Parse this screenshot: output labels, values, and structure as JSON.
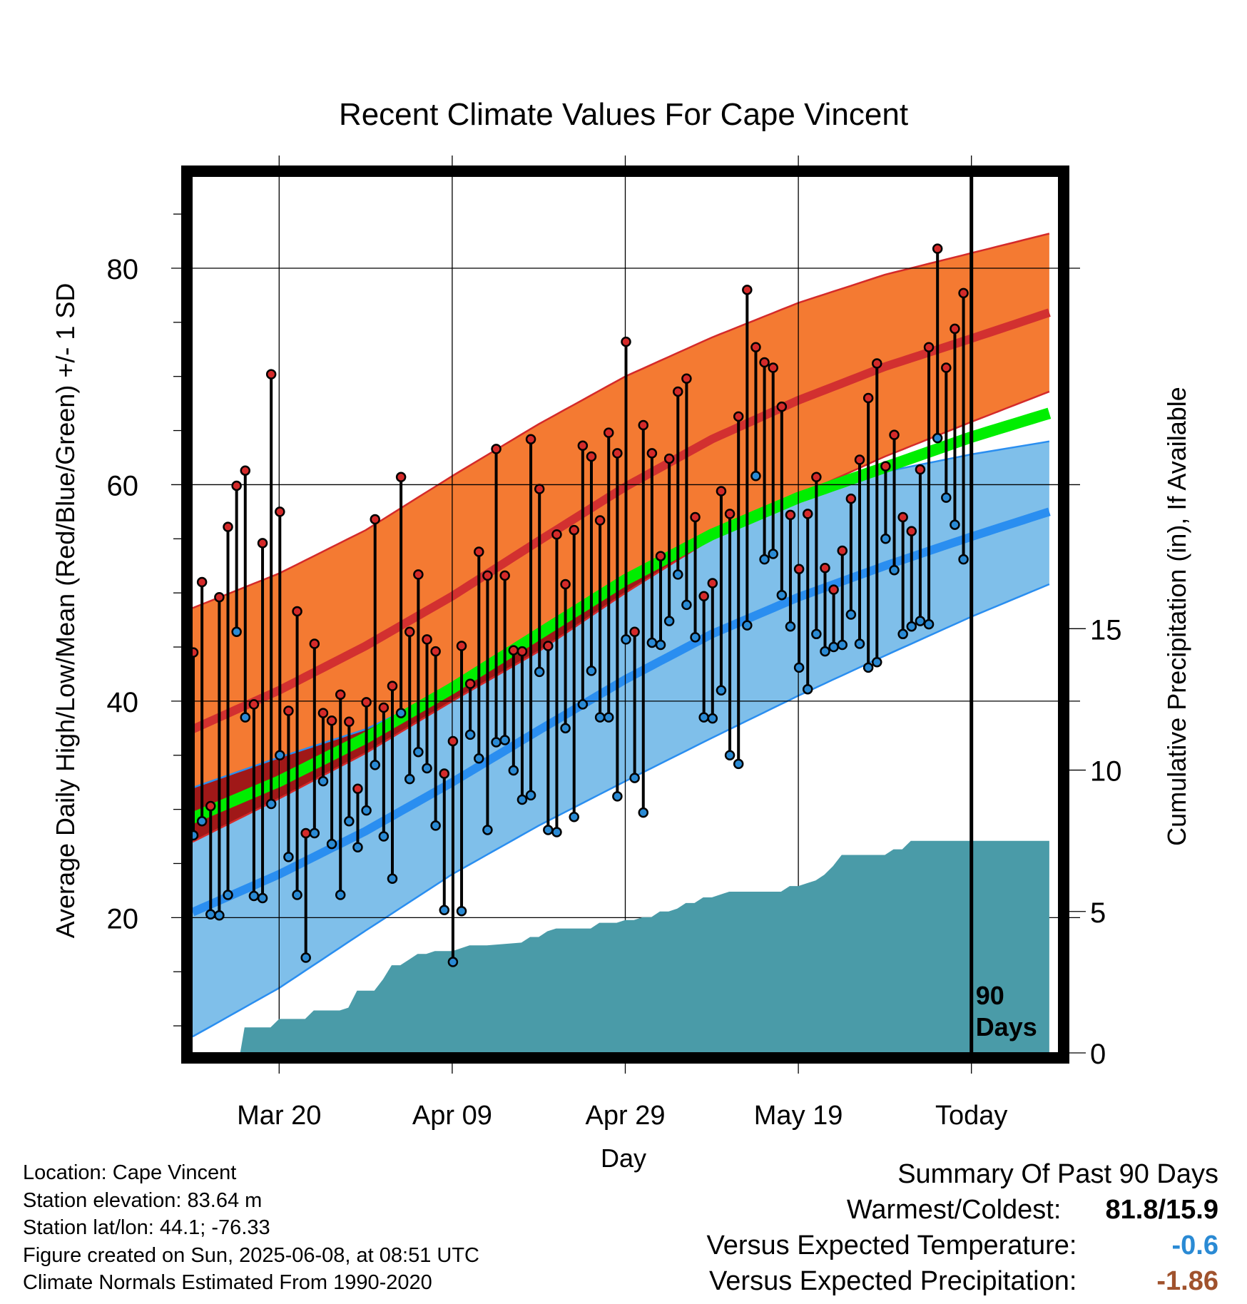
{
  "chart_data": {
    "type": "line",
    "title": "Recent Climate Values For Cape Vincent",
    "xlabel": "Day",
    "ylabel": "Average Daily High/Low/Mean (Red/Blue/Green) +/- 1 SD",
    "y2label": "Cumulative Precipitation (in), If Available",
    "ylim": [
      7.5,
      88.5
    ],
    "y2lim": [
      0,
      31
    ],
    "x_ticks": [
      {
        "day": 10,
        "label": "Mar 20"
      },
      {
        "day": 30,
        "label": "Apr 09"
      },
      {
        "day": 50,
        "label": "Apr 29"
      },
      {
        "day": 70,
        "label": "May 19"
      },
      {
        "day": 90,
        "label": "Today"
      }
    ],
    "y_ticks": [
      20,
      40,
      60,
      80
    ],
    "y2_ticks": [
      0,
      5,
      10,
      15
    ],
    "today_marker": {
      "day": 90,
      "label_line1": "90",
      "label_line2": "Days"
    },
    "normals": {
      "day": [
        0,
        10,
        20,
        30,
        40,
        50,
        60,
        70,
        80,
        90,
        99
      ],
      "high_mean": [
        37.4,
        41.0,
        45.1,
        49.7,
        54.8,
        59.8,
        64.2,
        67.8,
        70.9,
        73.5,
        75.9
      ],
      "high_sd_upper": [
        48.6,
        51.8,
        55.8,
        60.8,
        65.6,
        70.0,
        73.6,
        76.8,
        79.4,
        81.4,
        83.2
      ],
      "high_sd_lower": [
        27.0,
        31.0,
        35.2,
        40.0,
        44.6,
        50.0,
        55.0,
        59.0,
        62.6,
        65.8,
        68.6
      ],
      "mean": [
        29.2,
        32.6,
        36.6,
        41.2,
        46.2,
        51.2,
        55.4,
        58.8,
        61.6,
        64.4,
        66.6
      ],
      "low_mean": [
        20.5,
        24.0,
        28.0,
        32.5,
        37.3,
        42.0,
        46.2,
        49.6,
        52.5,
        55.2,
        57.5
      ],
      "low_sd_upper": [
        32.0,
        34.8,
        37.4,
        41.2,
        46.2,
        51.0,
        55.2,
        58.6,
        61.2,
        62.8,
        64.0
      ],
      "low_sd_lower": [
        9.0,
        13.5,
        18.8,
        24.0,
        28.5,
        32.6,
        36.6,
        40.5,
        44.2,
        47.8,
        50.8
      ]
    },
    "series": [
      {
        "name": "Daily High",
        "color": "#d42a2a",
        "values": [
          44.5,
          51.0,
          30.3,
          49.6,
          56.1,
          59.9,
          61.3,
          39.7,
          54.6,
          70.2,
          57.5,
          39.1,
          48.3,
          27.8,
          45.3,
          38.9,
          38.2,
          40.6,
          38.1,
          31.9,
          39.9,
          56.8,
          39.4,
          41.4,
          60.7,
          46.4,
          51.7,
          45.7,
          44.6,
          33.3,
          36.3,
          45.1,
          41.6,
          53.8,
          51.6,
          63.3,
          51.6,
          44.7,
          44.6,
          64.2,
          59.6,
          45.1,
          55.4,
          50.8,
          55.8,
          63.6,
          62.6,
          56.7,
          64.8,
          62.9,
          73.2,
          46.4,
          65.5,
          62.9,
          53.4,
          62.4,
          68.6,
          69.8,
          57.0,
          49.7,
          50.9,
          59.4,
          57.3,
          66.3,
          78.0,
          72.7,
          71.3,
          70.8,
          67.2,
          57.2,
          52.2,
          57.3,
          60.7,
          52.3,
          50.3,
          53.9,
          58.7,
          62.3,
          68.0,
          71.2,
          61.7,
          64.6,
          57.0,
          55.7,
          61.4,
          72.7,
          81.8,
          70.8,
          74.4,
          77.7
        ]
      },
      {
        "name": "Daily Low",
        "color": "#2a8ad4",
        "values": [
          27.6,
          28.9,
          20.3,
          20.2,
          22.1,
          46.4,
          38.5,
          22.0,
          21.8,
          30.5,
          35.0,
          25.6,
          22.1,
          16.3,
          27.8,
          32.6,
          26.8,
          22.1,
          28.9,
          26.5,
          29.9,
          34.1,
          27.5,
          23.6,
          38.9,
          32.8,
          35.3,
          33.8,
          28.5,
          20.7,
          15.9,
          20.6,
          36.9,
          34.7,
          28.1,
          36.2,
          36.4,
          33.6,
          30.9,
          31.3,
          42.7,
          28.1,
          27.9,
          37.5,
          29.3,
          39.7,
          42.8,
          38.5,
          38.5,
          31.2,
          45.7,
          32.9,
          29.7,
          45.4,
          45.2,
          47.4,
          51.7,
          48.9,
          45.9,
          38.5,
          38.4,
          41.0,
          35.0,
          34.2,
          47.0,
          60.8,
          53.1,
          53.6,
          49.8,
          46.9,
          43.1,
          41.1,
          46.2,
          44.6,
          45.0,
          45.2,
          48.0,
          45.3,
          43.1,
          43.6,
          55.0,
          52.1,
          46.2,
          46.9,
          47.4,
          47.1,
          64.3,
          58.8,
          56.3,
          53.1
        ]
      }
    ],
    "precip_cumulative": {
      "day": [
        0,
        5.5,
        6,
        9,
        10,
        13,
        14,
        17,
        18,
        19,
        21,
        22,
        23,
        24,
        25,
        26,
        27,
        28,
        30,
        32,
        34,
        38,
        39,
        40,
        41,
        42,
        46,
        47,
        49,
        50,
        51,
        52,
        53,
        54,
        55,
        56,
        57,
        58,
        59,
        60,
        61,
        62,
        63,
        68,
        69,
        70,
        71,
        72,
        73,
        74,
        75,
        76,
        80,
        81,
        82,
        83,
        84,
        90,
        99
      ],
      "value": [
        0,
        0,
        0.9,
        0.9,
        1.2,
        1.2,
        1.5,
        1.5,
        1.6,
        2.2,
        2.2,
        2.6,
        3.1,
        3.1,
        3.3,
        3.5,
        3.5,
        3.6,
        3.6,
        3.8,
        3.8,
        3.9,
        4.1,
        4.1,
        4.3,
        4.4,
        4.4,
        4.6,
        4.6,
        4.7,
        4.7,
        4.8,
        4.8,
        5.0,
        5.0,
        5.1,
        5.3,
        5.3,
        5.5,
        5.5,
        5.6,
        5.7,
        5.7,
        5.7,
        5.9,
        5.9,
        6.0,
        6.1,
        6.3,
        6.6,
        7.0,
        7.0,
        7.0,
        7.2,
        7.2,
        7.5,
        7.5,
        7.5,
        7.5
      ]
    },
    "colors": {
      "high_band": "#f47a32",
      "high_band_edge": "#d42a2a",
      "high_mean": "#d23030",
      "mean": "#00ee00",
      "low_band": "#7fbfea",
      "low_band_edge": "#2a8ef0",
      "low_mean": "#2a8ef0",
      "precip": "#4a9ba8",
      "overlap": "#a01818"
    },
    "grid": true
  },
  "info": {
    "location": "Location: Cape Vincent",
    "elevation": "Station elevation: 83.64 m",
    "latlon": "Station lat/lon: 44.1; -76.33",
    "created": "Figure created on Sun, 2025-06-08, at 08:51 UTC",
    "normals_note": "Climate Normals Estimated From 1990-2020"
  },
  "summary": {
    "heading": "Summary Of Past 90 Days",
    "warm_cold_label": "Warmest/Coldest:",
    "warm_cold_value": "81.8/15.9",
    "temp_label": "Versus Expected Temperature:",
    "temp_value": "-0.6",
    "temp_color": "#2a8ad4",
    "precip_label": "Versus Expected Precipitation:",
    "precip_value": "-1.86",
    "precip_color": "#a0522d"
  }
}
